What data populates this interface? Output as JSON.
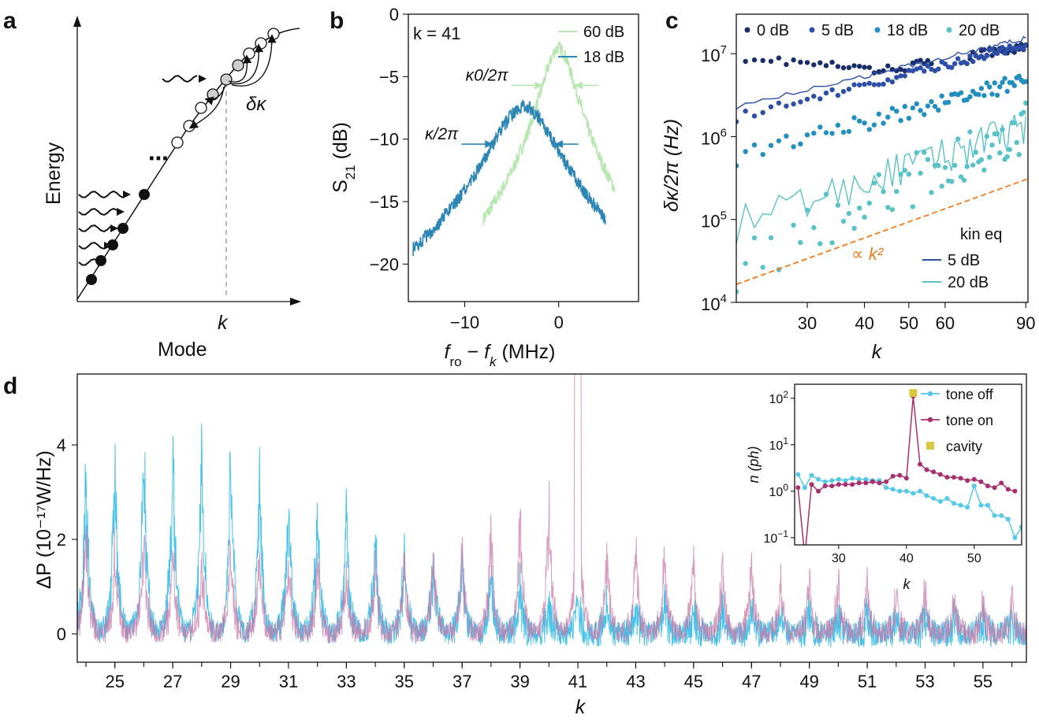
{
  "panel_labels": [
    "a",
    "b",
    "c",
    "d"
  ],
  "chart_data": [
    {
      "panel": "a",
      "type": "diagram",
      "xlabel": "Mode",
      "ylabel": "Energy",
      "x_marker": "k",
      "annotation": "δκ",
      "ellipsis": "⋯"
    },
    {
      "panel": "b",
      "type": "line",
      "xlabel": "f_ro − f_k (MHz)",
      "ylabel": "S21 (dB)",
      "xlim": [
        -16,
        8.5
      ],
      "ylim": [
        -23,
        0
      ],
      "xticks": [
        -10,
        0
      ],
      "yticks": [
        0,
        -5,
        -10,
        -15,
        -20
      ],
      "xtick_labels": [
        "−10",
        "0"
      ],
      "ytick_labels": [
        "0",
        "−5",
        "−10",
        "−15",
        "−20"
      ],
      "annotation": "k = 41",
      "series": [
        {
          "name": "60 dB",
          "color": "#b8e6b0",
          "center": 0,
          "peak": -2.7,
          "width_label": "κ0/2π",
          "hwhm": 1.7,
          "x_range": [
            -8,
            6
          ]
        },
        {
          "name": "18 dB",
          "color": "#2c86b5",
          "center": -3.7,
          "peak": -7.4,
          "width_label": "κ/2π",
          "hwhm": 3.3,
          "x_range": [
            -15.5,
            5
          ]
        }
      ]
    },
    {
      "panel": "c",
      "type": "scatter",
      "xlabel": "k",
      "ylabel": "δκ/2π (Hz)",
      "xscale": "log",
      "yscale": "log",
      "xlim": [
        21,
        91
      ],
      "ylim": [
        10000,
        30000000
      ],
      "xticks": [
        30,
        40,
        50,
        60,
        90
      ],
      "xtick_labels": [
        "30",
        "40",
        "50",
        "60",
        "90"
      ],
      "yticks": [
        10000,
        100000,
        1000000,
        10000000
      ],
      "ytick_base": "10",
      "ytick_exponents": [
        "4",
        "5",
        "6",
        "7"
      ],
      "legend_title": "kin eq",
      "fit_label": "∝ k²",
      "fit_anchor": {
        "k": 21,
        "value": 16500
      },
      "series": [
        {
          "name": "0 dB",
          "color": "#1a2d6b",
          "start": 9300000,
          "end": 12000000
        },
        {
          "name": "5 dB",
          "color": "#2e4fa8",
          "start": 1700000,
          "end": 13000000
        },
        {
          "name": "18 dB",
          "color": "#238fbe",
          "start": 560000,
          "end": 5000000
        },
        {
          "name": "20 dB",
          "color": "#58c2c6",
          "start": 30000,
          "end": 1300000
        }
      ],
      "lines": [
        {
          "name": "5 dB",
          "color": "#2e4fa8",
          "start": 2300000,
          "end": 15500000
        },
        {
          "name": "20 dB",
          "color": "#58c2c6",
          "start": 85000,
          "end": 1300000
        }
      ]
    },
    {
      "panel": "d",
      "type": "area",
      "xlabel": "k",
      "ylabel": "ΔP (10⁻¹⁷W/Hz)",
      "xlim": [
        23.7,
        56.5
      ],
      "ylim": [
        -0.6,
        5.5
      ],
      "xticks": [
        25,
        27,
        29,
        31,
        33,
        35,
        37,
        39,
        41,
        43,
        45,
        47,
        49,
        51,
        53,
        55
      ],
      "xtick_labels": [
        "25",
        "27",
        "29",
        "31",
        "33",
        "35",
        "37",
        "39",
        "41",
        "43",
        "45",
        "47",
        "49",
        "51",
        "53",
        "55"
      ],
      "yticks": [
        0,
        2,
        4
      ],
      "ytick_labels": [
        "0",
        "2",
        "4"
      ],
      "series": [
        {
          "name": "tone off",
          "color": "#3cc0e8",
          "peaks": [
            4.5,
            4.95,
            5.05,
            5.0,
            4.9,
            4.8,
            3.95,
            3.6,
            3.25,
            3.05,
            2.6,
            2.4,
            2.1,
            1.85,
            1.5,
            1.15,
            0.75,
            0.95,
            0.85,
            0.8,
            0.85,
            0.75,
            0.7,
            0.65,
            0.6,
            0.55,
            0.5,
            0.5,
            0.45,
            0.45,
            0.4,
            0.35,
            0.35
          ]
        },
        {
          "name": "tone on",
          "color": "#c97ba8",
          "peaks": [
            2.9,
            2.2,
            2.7,
            2.1,
            2.1,
            2.3,
            2.3,
            2.0,
            2.0,
            1.8,
            1.75,
            2.1,
            2.15,
            2.15,
            2.6,
            2.95,
            3.5,
            5.6,
            2.45,
            2.3,
            2.2,
            2.1,
            1.9,
            1.8,
            1.5,
            1.5,
            1.4,
            1.3,
            1.1,
            1.1,
            1.0,
            0.95,
            1.05
          ]
        }
      ],
      "inset": {
        "type": "line",
        "xlabel": "k",
        "ylabel": "n (ph)",
        "yscale": "log",
        "xlim": [
          23.5,
          57
        ],
        "ylim": [
          0.07,
          200
        ],
        "xticks": [
          30,
          40,
          50
        ],
        "xtick_labels": [
          "30",
          "40",
          "50"
        ],
        "ytick_base": "10",
        "ytick_exponents": [
          "−1",
          "0",
          "1",
          "2"
        ],
        "yticks": [
          0.1,
          1,
          10,
          100
        ],
        "series": [
          {
            "name": "tone off",
            "color": "#56c8e8",
            "k_start": 24,
            "values": [
              2.3,
              1.2,
              2.2,
              1.8,
              1.6,
              1.7,
              1.8,
              1.7,
              1.9,
              1.8,
              1.8,
              1.7,
              1.7,
              1.2,
              1.1,
              1.0,
              1.0,
              0.9,
              1.0,
              0.8,
              0.7,
              0.6,
              0.7,
              0.55,
              0.5,
              0.45,
              1.3,
              0.5,
              0.5,
              0.3,
              0.3,
              0.25,
              0.1,
              0.17
            ]
          },
          {
            "name": "tone on",
            "color": "#a8306e",
            "k_start": 24,
            "values": [
              1.2,
              0.04,
              1.4,
              1.0,
              1.3,
              1.3,
              1.4,
              1.4,
              1.4,
              1.5,
              1.5,
              1.6,
              1.5,
              1.6,
              2.1,
              2.2,
              1.9,
              110,
              3.8,
              2.9,
              2.6,
              2.3,
              2.0,
              2.0,
              1.9,
              1.7,
              1.8,
              1.6,
              1.3,
              1.2,
              1.5,
              1.1,
              1.0
            ]
          },
          {
            "name": "cavity",
            "color": "#d8c840",
            "k": [
              41
            ],
            "values": [
              130
            ]
          }
        ]
      }
    }
  ]
}
